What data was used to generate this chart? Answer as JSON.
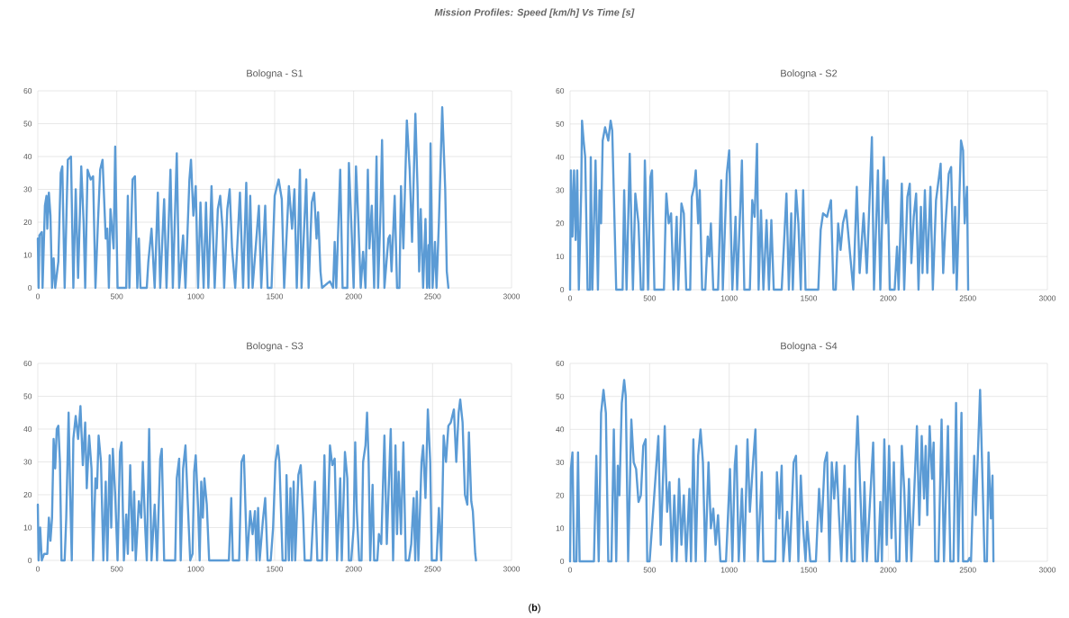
{
  "chart_data": [
    {
      "type": "other",
      "title": "*Mission Profiles: Speed [km/h] Vs Time [s]*",
      "annotations": [
        "(**b**)"
      ]
    },
    {
      "type": "line",
      "title": "Bologna - S1",
      "color": "#5b9bd5",
      "xlim": [
        0,
        3000
      ],
      "ylim": [
        0,
        60
      ],
      "xticks": [
        0,
        500,
        1000,
        1500,
        2000,
        2500,
        3000
      ],
      "yticks": [
        0,
        10,
        20,
        30,
        40,
        50,
        60
      ],
      "grid": true,
      "x": [
        0,
        5,
        10,
        25,
        30,
        45,
        55,
        60,
        70,
        80,
        90,
        100,
        110,
        130,
        145,
        155,
        170,
        190,
        210,
        225,
        240,
        255,
        275,
        290,
        300,
        315,
        335,
        350,
        365,
        380,
        395,
        410,
        430,
        440,
        450,
        460,
        480,
        490,
        505,
        560,
        570,
        580,
        600,
        615,
        630,
        640,
        650,
        690,
        700,
        720,
        740,
        760,
        775,
        800,
        815,
        840,
        855,
        880,
        895,
        920,
        935,
        960,
        970,
        985,
        1000,
        1015,
        1030,
        1050,
        1065,
        1080,
        1100,
        1120,
        1140,
        1155,
        1170,
        1180,
        1200,
        1215,
        1230,
        1250,
        1280,
        1300,
        1320,
        1335,
        1345,
        1360,
        1400,
        1415,
        1440,
        1455,
        1480,
        1500,
        1525,
        1545,
        1560,
        1590,
        1610,
        1625,
        1640,
        1660,
        1670,
        1700,
        1715,
        1735,
        1750,
        1765,
        1775,
        1790,
        1800,
        1850,
        1870,
        1880,
        1890,
        1915,
        1930,
        1960,
        1970,
        1985,
        2000,
        2015,
        2030,
        2045,
        2060,
        2075,
        2090,
        2100,
        2115,
        2130,
        2145,
        2155,
        2170,
        2180,
        2195,
        2220,
        2230,
        2240,
        2260,
        2275,
        2290,
        2300,
        2315,
        2337,
        2355,
        2370,
        2391,
        2405,
        2415,
        2425,
        2440,
        2455,
        2465,
        2475,
        2480,
        2487,
        2500,
        2515,
        2525,
        2540,
        2561,
        2580,
        2590,
        2600
      ],
      "values": [
        15,
        0,
        16,
        17,
        0,
        25,
        28,
        18,
        29,
        22,
        0,
        9,
        0,
        8,
        35,
        37,
        0,
        39,
        40,
        0,
        30,
        3,
        37,
        20,
        0,
        36,
        33,
        34,
        0,
        19,
        36,
        39,
        15,
        18,
        0,
        24,
        12,
        43,
        0,
        0,
        28,
        0,
        33,
        34,
        0,
        15,
        0,
        0,
        8,
        18,
        0,
        29,
        0,
        27,
        0,
        36,
        0,
        41,
        0,
        16,
        0,
        33,
        39,
        22,
        31,
        0,
        26,
        0,
        26,
        0,
        31,
        0,
        24,
        28,
        18,
        0,
        24,
        30,
        12,
        0,
        29,
        0,
        32,
        0,
        28,
        0,
        25,
        0,
        25,
        0,
        0,
        28,
        33,
        27,
        0,
        31,
        18,
        30,
        0,
        36,
        0,
        33,
        0,
        26,
        29,
        15,
        23,
        5,
        0,
        2,
        0,
        14,
        0,
        36,
        0,
        0,
        38,
        20,
        0,
        37,
        20,
        0,
        11,
        0,
        36,
        12,
        25,
        0,
        40,
        0,
        23,
        45,
        0,
        15,
        16,
        5,
        28,
        0,
        0,
        31,
        12,
        51,
        36,
        14,
        53,
        30,
        5,
        24,
        0,
        21,
        0,
        13,
        0,
        44,
        0,
        14,
        0,
        20,
        55,
        30,
        5,
        0
      ]
    },
    {
      "type": "line",
      "title": "Bologna - S2",
      "color": "#5b9bd5",
      "xlim": [
        0,
        3000
      ],
      "ylim": [
        0,
        60
      ],
      "xticks": [
        0,
        500,
        1000,
        1500,
        2000,
        2500,
        3000
      ],
      "yticks": [
        0,
        10,
        20,
        30,
        40,
        50,
        60
      ],
      "grid": true,
      "x": [
        0,
        5,
        15,
        25,
        35,
        45,
        55,
        70,
        75,
        85,
        95,
        110,
        125,
        130,
        140,
        150,
        160,
        175,
        185,
        195,
        205,
        220,
        240,
        255,
        265,
        290,
        330,
        340,
        355,
        375,
        395,
        410,
        430,
        445,
        460,
        470,
        490,
        505,
        515,
        530,
        590,
        600,
        605,
        620,
        635,
        650,
        670,
        680,
        700,
        715,
        730,
        755,
        765,
        780,
        790,
        805,
        815,
        830,
        850,
        865,
        875,
        885,
        900,
        930,
        950,
        960,
        985,
        1000,
        1010,
        1020,
        1040,
        1050,
        1070,
        1080,
        1095,
        1130,
        1145,
        1160,
        1175,
        1185,
        1200,
        1215,
        1235,
        1250,
        1265,
        1280,
        1300,
        1330,
        1360,
        1375,
        1390,
        1400,
        1420,
        1435,
        1450,
        1465,
        1480,
        1560,
        1575,
        1590,
        1615,
        1640,
        1655,
        1670,
        1685,
        1700,
        1715,
        1735,
        1750,
        1780,
        1802,
        1820,
        1845,
        1865,
        1897,
        1910,
        1935,
        1950,
        1972,
        1985,
        1995,
        2010,
        2040,
        2055,
        2065,
        2085,
        2100,
        2120,
        2135,
        2145,
        2160,
        2175,
        2190,
        2205,
        2215,
        2230,
        2245,
        2265,
        2280,
        2300,
        2329,
        2345,
        2360,
        2380,
        2395,
        2410,
        2420,
        2430,
        2457,
        2470,
        2480,
        2495,
        2502
      ],
      "values": [
        0,
        36,
        16,
        36,
        15,
        36,
        0,
        30,
        51,
        45,
        40,
        0,
        0,
        40,
        0,
        20,
        39,
        0,
        30,
        20,
        45,
        49,
        45,
        51,
        48,
        0,
        0,
        30,
        0,
        41,
        0,
        29,
        20,
        0,
        0,
        39,
        0,
        34,
        36,
        0,
        0,
        21,
        29,
        20,
        23,
        0,
        22,
        0,
        26,
        23,
        0,
        0,
        28,
        31,
        36,
        20,
        30,
        0,
        0,
        16,
        10,
        20,
        0,
        0,
        33,
        0,
        35,
        42,
        20,
        0,
        22,
        0,
        25,
        39,
        0,
        0,
        27,
        22,
        44,
        0,
        24,
        0,
        21,
        0,
        21,
        0,
        0,
        0,
        29,
        0,
        23,
        0,
        30,
        20,
        0,
        30,
        0,
        0,
        18,
        23,
        22,
        27,
        0,
        0,
        20,
        12,
        20,
        24,
        16,
        0,
        31,
        5,
        23,
        5,
        46,
        0,
        36,
        0,
        40,
        20,
        33,
        0,
        0,
        13,
        0,
        32,
        0,
        28,
        32,
        8,
        22,
        29,
        0,
        25,
        5,
        30,
        5,
        31,
        0,
        27,
        38,
        5,
        20,
        35,
        37,
        5,
        25,
        0,
        45,
        42,
        20,
        31,
        0
      ]
    },
    {
      "type": "line",
      "title": "Bologna - S3",
      "color": "#5b9bd5",
      "xlim": [
        0,
        3000
      ],
      "ylim": [
        0,
        60
      ],
      "xticks": [
        0,
        500,
        1000,
        1500,
        2000,
        2500,
        3000
      ],
      "yticks": [
        0,
        10,
        20,
        30,
        40,
        50,
        60
      ],
      "grid": true,
      "x": [
        0,
        5,
        15,
        25,
        40,
        60,
        70,
        80,
        90,
        100,
        110,
        120,
        130,
        140,
        150,
        170,
        180,
        195,
        205,
        215,
        225,
        240,
        255,
        270,
        285,
        300,
        310,
        325,
        340,
        350,
        365,
        375,
        385,
        400,
        415,
        430,
        440,
        455,
        465,
        475,
        490,
        505,
        520,
        530,
        545,
        560,
        570,
        585,
        600,
        610,
        620,
        640,
        655,
        665,
        680,
        690,
        705,
        720,
        740,
        755,
        775,
        785,
        800,
        870,
        880,
        895,
        905,
        920,
        935,
        950,
        965,
        980,
        990,
        1000,
        1015,
        1025,
        1035,
        1045,
        1055,
        1070,
        1085,
        1210,
        1225,
        1235,
        1275,
        1290,
        1305,
        1325,
        1345,
        1360,
        1375,
        1385,
        1395,
        1405,
        1425,
        1440,
        1455,
        1475,
        1490,
        1505,
        1520,
        1530,
        1550,
        1570,
        1575,
        1590,
        1600,
        1610,
        1620,
        1630,
        1650,
        1665,
        1680,
        1690,
        1730,
        1755,
        1770,
        1800,
        1815,
        1830,
        1850,
        1865,
        1880,
        1895,
        1915,
        1925,
        1945,
        1960,
        1970,
        1985,
        2000,
        2010,
        2020,
        2035,
        2050,
        2060,
        2075,
        2085,
        2095,
        2105,
        2120,
        2130,
        2150,
        2160,
        2175,
        2195,
        2210,
        2235,
        2250,
        2265,
        2275,
        2285,
        2300,
        2315,
        2330,
        2350,
        2365,
        2380,
        2390,
        2400,
        2410,
        2430,
        2440,
        2455,
        2470,
        2485,
        2495,
        2525,
        2540,
        2555,
        2570,
        2585,
        2600,
        2615,
        2635,
        2650,
        2665,
        2675,
        2690,
        2705,
        2720,
        2730,
        2745,
        2755,
        2770,
        2775
      ],
      "values": [
        17,
        0,
        10,
        0,
        2,
        2,
        13,
        6,
        13,
        37,
        28,
        40,
        41,
        30,
        0,
        0,
        13,
        45,
        20,
        0,
        37,
        44,
        37,
        47,
        29,
        42,
        22,
        38,
        28,
        0,
        25,
        22,
        38,
        30,
        0,
        24,
        0,
        32,
        10,
        34,
        20,
        0,
        33,
        36,
        0,
        14,
        2,
        29,
        3,
        21,
        0,
        18,
        13,
        30,
        10,
        0,
        40,
        0,
        17,
        0,
        31,
        34,
        0,
        0,
        25,
        31,
        0,
        28,
        35,
        17,
        0,
        2,
        27,
        32,
        16,
        0,
        24,
        13,
        25,
        17,
        0,
        0,
        19,
        0,
        0,
        30,
        32,
        0,
        15,
        8,
        15,
        0,
        16,
        0,
        12,
        19,
        0,
        0,
        10,
        30,
        35,
        30,
        0,
        0,
        26,
        0,
        22,
        0,
        24,
        0,
        26,
        29,
        14,
        0,
        0,
        24,
        0,
        0,
        32,
        0,
        35,
        29,
        31,
        0,
        25,
        0,
        33,
        25,
        0,
        0,
        10,
        36,
        15,
        0,
        0,
        30,
        35,
        45,
        30,
        0,
        23,
        0,
        0,
        8,
        5,
        38,
        5,
        40,
        0,
        35,
        8,
        27,
        8,
        36,
        0,
        0,
        5,
        19,
        0,
        21,
        0,
        30,
        35,
        19,
        46,
        30,
        0,
        0,
        16,
        0,
        38,
        30,
        41,
        42,
        46,
        30,
        45,
        49,
        42,
        20,
        17,
        39,
        18,
        15,
        2,
        0
      ]
    },
    {
      "type": "line",
      "title": "Bologna - S4",
      "color": "#5b9bd5",
      "xlim": [
        0,
        3000
      ],
      "ylim": [
        0,
        60
      ],
      "xticks": [
        0,
        500,
        1000,
        1500,
        2000,
        2500,
        3000
      ],
      "yticks": [
        0,
        10,
        20,
        30,
        40,
        50,
        60
      ],
      "grid": true,
      "x": [
        0,
        5,
        15,
        25,
        40,
        50,
        60,
        70,
        150,
        165,
        180,
        195,
        210,
        225,
        240,
        260,
        275,
        290,
        300,
        310,
        325,
        340,
        350,
        365,
        385,
        400,
        415,
        430,
        445,
        460,
        475,
        485,
        500,
        555,
        570,
        595,
        610,
        625,
        640,
        655,
        670,
        685,
        700,
        715,
        730,
        750,
        760,
        775,
        790,
        805,
        820,
        835,
        850,
        870,
        885,
        900,
        915,
        930,
        945,
        980,
        990,
        1005,
        1020,
        1035,
        1045,
        1060,
        1080,
        1095,
        1115,
        1130,
        1150,
        1165,
        1180,
        1205,
        1215,
        1290,
        1300,
        1315,
        1330,
        1340,
        1365,
        1380,
        1405,
        1420,
        1435,
        1450,
        1465,
        1480,
        1490,
        1510,
        1545,
        1565,
        1580,
        1600,
        1615,
        1630,
        1645,
        1660,
        1675,
        1690,
        1705,
        1725,
        1740,
        1755,
        1770,
        1790,
        1795,
        1807,
        1825,
        1840,
        1850,
        1865,
        1905,
        1920,
        1935,
        1950,
        1960,
        1975,
        1990,
        2005,
        2020,
        2035,
        2050,
        2070,
        2085,
        2100,
        2115,
        2130,
        2145,
        2180,
        2195,
        2210,
        2225,
        2235,
        2245,
        2260,
        2275,
        2285,
        2295,
        2315,
        2335,
        2350,
        2375,
        2390,
        2410,
        2426,
        2440,
        2460,
        2470,
        2500,
        2510,
        2520,
        2540,
        2550,
        2577,
        2595,
        2605,
        2620,
        2630,
        2645,
        2655,
        2661
      ],
      "values": [
        0,
        28,
        33,
        0,
        0,
        33,
        0,
        0,
        0,
        32,
        0,
        45,
        52,
        45,
        0,
        0,
        40,
        0,
        29,
        20,
        48,
        55,
        50,
        0,
        43,
        30,
        28,
        18,
        20,
        35,
        37,
        0,
        0,
        38,
        5,
        41,
        15,
        24,
        0,
        20,
        0,
        25,
        5,
        20,
        0,
        22,
        0,
        37,
        0,
        32,
        40,
        30,
        0,
        30,
        10,
        16,
        5,
        14,
        0,
        0,
        11,
        28,
        0,
        29,
        35,
        0,
        22,
        0,
        37,
        15,
        30,
        40,
        0,
        27,
        0,
        0,
        27,
        13,
        29,
        0,
        15,
        0,
        30,
        32,
        0,
        26,
        10,
        0,
        12,
        0,
        0,
        22,
        9,
        30,
        33,
        0,
        30,
        19,
        30,
        14,
        0,
        29,
        0,
        22,
        0,
        0,
        30,
        44,
        20,
        0,
        24,
        0,
        36,
        0,
        0,
        18,
        0,
        37,
        5,
        35,
        7,
        30,
        0,
        0,
        35,
        22,
        0,
        25,
        0,
        41,
        11,
        38,
        19,
        35,
        14,
        41,
        25,
        36,
        0,
        0,
        43,
        0,
        41,
        0,
        0,
        48,
        0,
        45,
        0,
        0,
        1,
        0,
        32,
        14,
        52,
        20,
        0,
        0,
        33,
        13,
        26,
        0
      ]
    }
  ]
}
